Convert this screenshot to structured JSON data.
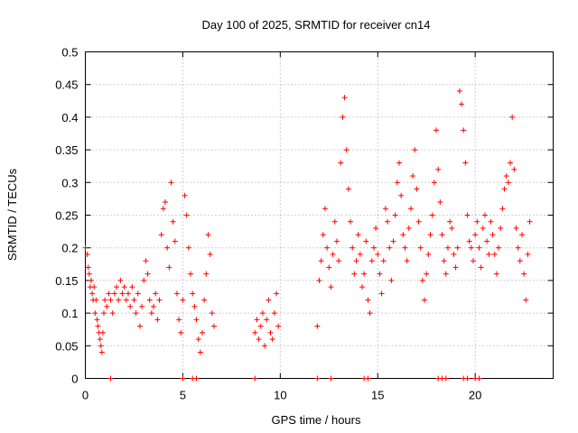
{
  "chart_data": {
    "type": "scatter",
    "title": "Day 100 of 2025, SRMTID for receiver cn14",
    "xlabel": "GPS time / hours",
    "ylabel": "SRMTID / TECUs",
    "xlim": [
      0,
      24
    ],
    "ylim": [
      0,
      0.5
    ],
    "grid": true,
    "marker": "+",
    "x_ticks": [
      0,
      5,
      10,
      15,
      20
    ],
    "x_tick_labels": [
      "0",
      "5",
      "10",
      "15",
      "20"
    ],
    "y_ticks": [
      0,
      0.05,
      0.1,
      0.15,
      0.2,
      0.25,
      0.3,
      0.35,
      0.4,
      0.45,
      0.5
    ],
    "y_tick_labels": [
      "0",
      "0.05",
      "0.1",
      "0.15",
      "0.2",
      "0.25",
      "0.3",
      "0.35",
      "0.4",
      "0.45",
      "0.5"
    ],
    "series": [
      {
        "name": "SRMTID",
        "color": "#ff0000",
        "points": [
          [
            0.0,
            0.2
          ],
          [
            0.1,
            0.19
          ],
          [
            0.15,
            0.17
          ],
          [
            0.2,
            0.16
          ],
          [
            0.25,
            0.14
          ],
          [
            0.3,
            0.15
          ],
          [
            0.35,
            0.13
          ],
          [
            0.4,
            0.12
          ],
          [
            0.45,
            0.14
          ],
          [
            0.5,
            0.1
          ],
          [
            0.55,
            0.12
          ],
          [
            0.6,
            0.09
          ],
          [
            0.65,
            0.08
          ],
          [
            0.7,
            0.07
          ],
          [
            0.75,
            0.06
          ],
          [
            0.8,
            0.05
          ],
          [
            0.85,
            0.04
          ],
          [
            0.9,
            0.07
          ],
          [
            0.95,
            0.1
          ],
          [
            1.0,
            0.12
          ],
          [
            1.1,
            0.11
          ],
          [
            1.2,
            0.13
          ],
          [
            1.3,
            0.12
          ],
          [
            1.4,
            0.1
          ],
          [
            1.5,
            0.13
          ],
          [
            1.6,
            0.14
          ],
          [
            1.7,
            0.12
          ],
          [
            1.8,
            0.15
          ],
          [
            1.9,
            0.13
          ],
          [
            2.0,
            0.14
          ],
          [
            2.1,
            0.12
          ],
          [
            2.2,
            0.13
          ],
          [
            2.3,
            0.11
          ],
          [
            2.4,
            0.14
          ],
          [
            2.5,
            0.12
          ],
          [
            2.6,
            0.1
          ],
          [
            2.7,
            0.13
          ],
          [
            2.8,
            0.08
          ],
          [
            2.9,
            0.11
          ],
          [
            3.0,
            0.15
          ],
          [
            3.1,
            0.18
          ],
          [
            3.2,
            0.16
          ],
          [
            3.3,
            0.12
          ],
          [
            3.4,
            0.1
          ],
          [
            3.5,
            0.11
          ],
          [
            3.6,
            0.13
          ],
          [
            3.7,
            0.09
          ],
          [
            3.8,
            0.12
          ],
          [
            3.9,
            0.22
          ],
          [
            4.0,
            0.26
          ],
          [
            4.1,
            0.27
          ],
          [
            4.2,
            0.2
          ],
          [
            4.3,
            0.17
          ],
          [
            4.4,
            0.3
          ],
          [
            4.5,
            0.24
          ],
          [
            4.6,
            0.21
          ],
          [
            4.7,
            0.13
          ],
          [
            4.8,
            0.09
          ],
          [
            4.9,
            0.07
          ],
          [
            5.0,
            0.12
          ],
          [
            5.1,
            0.28
          ],
          [
            5.2,
            0.25
          ],
          [
            5.3,
            0.2
          ],
          [
            5.4,
            0.16
          ],
          [
            5.5,
            0.13
          ],
          [
            5.6,
            0.11
          ],
          [
            5.7,
            0.09
          ],
          [
            5.8,
            0.06
          ],
          [
            5.9,
            0.04
          ],
          [
            6.0,
            0.07
          ],
          [
            6.1,
            0.12
          ],
          [
            6.2,
            0.16
          ],
          [
            6.3,
            0.22
          ],
          [
            6.4,
            0.19
          ],
          [
            6.5,
            0.1
          ],
          [
            6.6,
            0.08
          ],
          [
            8.7,
            0.07
          ],
          [
            8.8,
            0.09
          ],
          [
            8.9,
            0.06
          ],
          [
            9.0,
            0.08
          ],
          [
            9.1,
            0.1
          ],
          [
            9.2,
            0.05
          ],
          [
            9.3,
            0.09
          ],
          [
            9.4,
            0.12
          ],
          [
            9.5,
            0.07
          ],
          [
            9.6,
            0.06
          ],
          [
            9.7,
            0.1
          ],
          [
            9.8,
            0.13
          ],
          [
            9.9,
            0.08
          ],
          [
            11.9,
            0.08
          ],
          [
            12.0,
            0.15
          ],
          [
            12.1,
            0.18
          ],
          [
            12.2,
            0.22
          ],
          [
            12.3,
            0.26
          ],
          [
            12.4,
            0.2
          ],
          [
            12.5,
            0.17
          ],
          [
            12.6,
            0.14
          ],
          [
            12.7,
            0.19
          ],
          [
            12.8,
            0.24
          ],
          [
            12.9,
            0.21
          ],
          [
            13.0,
            0.18
          ],
          [
            13.1,
            0.33
          ],
          [
            13.2,
            0.4
          ],
          [
            13.3,
            0.43
          ],
          [
            13.4,
            0.35
          ],
          [
            13.5,
            0.29
          ],
          [
            13.6,
            0.24
          ],
          [
            13.7,
            0.2
          ],
          [
            13.8,
            0.16
          ],
          [
            13.9,
            0.18
          ],
          [
            14.0,
            0.22
          ],
          [
            14.1,
            0.19
          ],
          [
            14.2,
            0.14
          ],
          [
            14.3,
            0.16
          ],
          [
            14.4,
            0.21
          ],
          [
            14.5,
            0.12
          ],
          [
            14.6,
            0.1
          ],
          [
            14.7,
            0.18
          ],
          [
            14.8,
            0.2
          ],
          [
            14.9,
            0.23
          ],
          [
            15.0,
            0.19
          ],
          [
            15.1,
            0.16
          ],
          [
            15.2,
            0.13
          ],
          [
            15.3,
            0.18
          ],
          [
            15.4,
            0.26
          ],
          [
            15.5,
            0.24
          ],
          [
            15.6,
            0.2
          ],
          [
            15.7,
            0.15
          ],
          [
            15.8,
            0.21
          ],
          [
            15.9,
            0.25
          ],
          [
            16.0,
            0.3
          ],
          [
            16.1,
            0.33
          ],
          [
            16.2,
            0.28
          ],
          [
            16.3,
            0.22
          ],
          [
            16.4,
            0.2
          ],
          [
            16.5,
            0.18
          ],
          [
            16.6,
            0.23
          ],
          [
            16.7,
            0.26
          ],
          [
            16.8,
            0.31
          ],
          [
            16.9,
            0.35
          ],
          [
            17.0,
            0.29
          ],
          [
            17.1,
            0.24
          ],
          [
            17.2,
            0.2
          ],
          [
            17.3,
            0.15
          ],
          [
            17.4,
            0.12
          ],
          [
            17.5,
            0.16
          ],
          [
            17.6,
            0.19
          ],
          [
            17.7,
            0.22
          ],
          [
            17.8,
            0.25
          ],
          [
            17.9,
            0.3
          ],
          [
            18.0,
            0.38
          ],
          [
            18.1,
            0.32
          ],
          [
            18.2,
            0.27
          ],
          [
            18.3,
            0.22
          ],
          [
            18.4,
            0.18
          ],
          [
            18.5,
            0.16
          ],
          [
            18.6,
            0.2
          ],
          [
            18.7,
            0.24
          ],
          [
            18.8,
            0.23
          ],
          [
            18.9,
            0.19
          ],
          [
            19.0,
            0.17
          ],
          [
            19.1,
            0.2
          ],
          [
            19.2,
            0.44
          ],
          [
            19.3,
            0.42
          ],
          [
            19.4,
            0.38
          ],
          [
            19.5,
            0.33
          ],
          [
            19.6,
            0.25
          ],
          [
            19.7,
            0.21
          ],
          [
            19.8,
            0.2
          ],
          [
            19.9,
            0.18
          ],
          [
            20.0,
            0.22
          ],
          [
            20.1,
            0.24
          ],
          [
            20.2,
            0.2
          ],
          [
            20.3,
            0.17
          ],
          [
            20.4,
            0.23
          ],
          [
            20.5,
            0.25
          ],
          [
            20.6,
            0.21
          ],
          [
            20.7,
            0.19
          ],
          [
            20.8,
            0.24
          ],
          [
            20.9,
            0.22
          ],
          [
            21.0,
            0.19
          ],
          [
            21.1,
            0.16
          ],
          [
            21.2,
            0.2
          ],
          [
            21.3,
            0.23
          ],
          [
            21.4,
            0.26
          ],
          [
            21.5,
            0.29
          ],
          [
            21.6,
            0.31
          ],
          [
            21.7,
            0.3
          ],
          [
            21.8,
            0.33
          ],
          [
            21.9,
            0.4
          ],
          [
            22.0,
            0.32
          ],
          [
            22.1,
            0.23
          ],
          [
            22.2,
            0.2
          ],
          [
            22.3,
            0.18
          ],
          [
            22.4,
            0.22
          ],
          [
            22.5,
            0.16
          ],
          [
            22.6,
            0.12
          ],
          [
            22.7,
            0.19
          ],
          [
            22.8,
            0.24
          ],
          [
            1.3,
            0
          ],
          [
            5.0,
            0
          ],
          [
            5.5,
            0
          ],
          [
            5.7,
            0
          ],
          [
            8.7,
            0
          ],
          [
            11.9,
            0
          ],
          [
            12.6,
            0
          ],
          [
            14.3,
            0
          ],
          [
            14.5,
            0
          ],
          [
            18.1,
            0
          ],
          [
            18.3,
            0
          ],
          [
            18.5,
            0
          ],
          [
            19.4,
            0
          ],
          [
            19.6,
            0
          ],
          [
            20.0,
            0
          ],
          [
            20.2,
            0
          ]
        ]
      }
    ]
  }
}
